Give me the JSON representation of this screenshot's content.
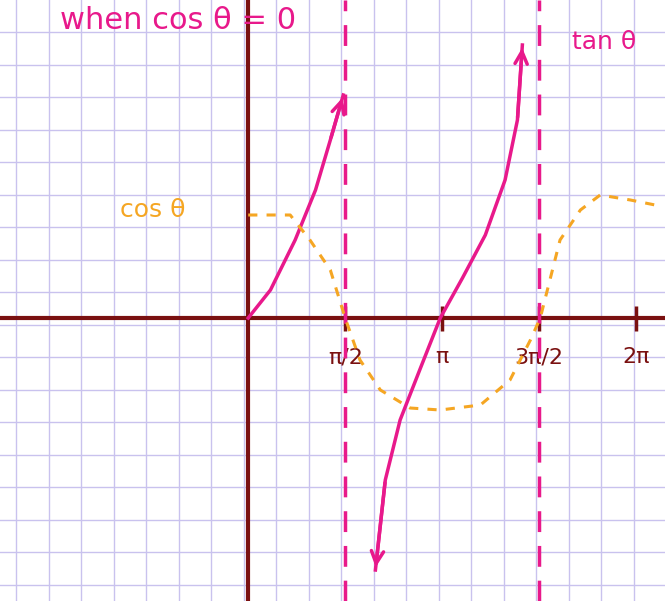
{
  "chart_data": {
    "type": "line",
    "title": "when cos θ = 0",
    "series": [
      {
        "name": "tan θ",
        "color": "#e8198b",
        "line_style": "solid",
        "x": [
          0.0,
          0.36,
          0.76,
          1.09,
          1.33,
          1.54,
          1.5708,
          2.06,
          2.22,
          2.46,
          2.79,
          3.11,
          3.47,
          3.84,
          4.16,
          4.36,
          4.44
        ],
        "values": [
          0.0,
          0.28,
          0.78,
          1.28,
          1.78,
          2.23,
          null,
          -2.52,
          -1.62,
          -1.02,
          -0.5,
          0.0,
          0.4,
          0.83,
          1.38,
          1.98,
          2.73
        ]
      },
      {
        "name": "cos θ",
        "color": "#f5a623",
        "line_style": "dashed",
        "x": [
          0.0,
          0.68,
          1.0,
          1.33,
          1.57,
          1.81,
          2.14,
          2.62,
          3.11,
          3.76,
          4.24,
          4.57,
          4.73,
          5.05,
          5.38,
          5.7,
          6.19,
          6.59
        ],
        "values": [
          1.03,
          1.03,
          0.78,
          0.48,
          0.0,
          -0.42,
          -0.72,
          -0.9,
          -0.92,
          -0.87,
          -0.62,
          -0.22,
          0.0,
          0.78,
          1.08,
          1.23,
          1.18,
          1.13
        ]
      }
    ],
    "asymptotes": [
      1.5708,
      4.7124
    ],
    "xlim": [
      -4.02,
      6.75
    ],
    "ylim": [
      -2.83,
      3.18
    ],
    "xticks": [
      {
        "value": 1.5708,
        "label": "π/2"
      },
      {
        "value": 3.1416,
        "label": "π"
      },
      {
        "value": 4.7124,
        "label": "3π/2"
      },
      {
        "value": 6.2832,
        "label": "2π"
      }
    ],
    "yticks": [],
    "tick_labels": "x",
    "grid": true
  }
}
